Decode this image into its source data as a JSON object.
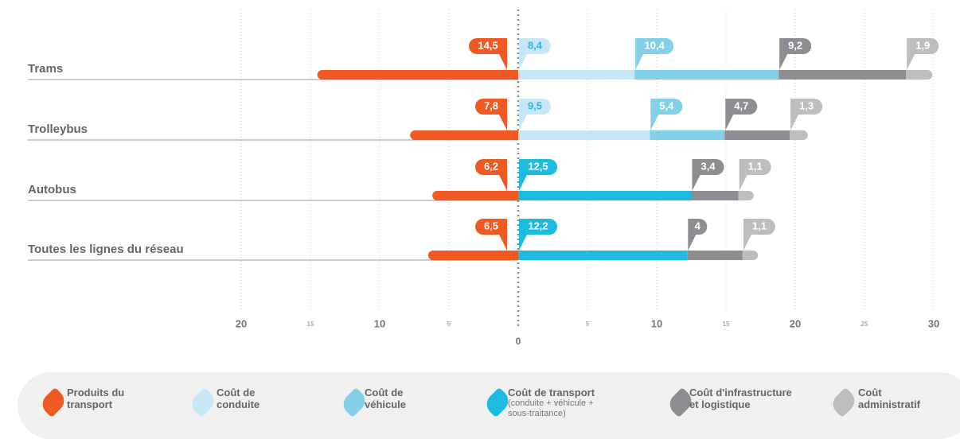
{
  "chart_data": {
    "type": "diverging-bar",
    "categories": [
      "Trams",
      "Trolleybus",
      "Autobus",
      "Toutes les lignes du réseau"
    ],
    "series": [
      {
        "name": "Produits du transport",
        "color": "#f05a22",
        "label_color": "#ffffff",
        "values": [
          -14.5,
          -7.8,
          -6.2,
          -6.5
        ],
        "value_labels": [
          "14,5",
          "7,8",
          "6,2",
          "6,5"
        ]
      },
      {
        "name": "Coût de conduite",
        "color": "#c6e8f6",
        "label_color": "#2fb3d9",
        "values": [
          8.4,
          9.5,
          null,
          null
        ],
        "value_labels": [
          "8,4",
          "9,5",
          null,
          null
        ]
      },
      {
        "name": "Coût de véhicule",
        "color": "#84d0e9",
        "label_color": "#ffffff",
        "values": [
          10.4,
          5.4,
          null,
          null
        ],
        "value_labels": [
          "10,4",
          "5,4",
          null,
          null
        ]
      },
      {
        "name": "Coût de transport",
        "note": "(conduite + véhicule + sous-traitance)",
        "color": "#1dbbe0",
        "label_color": "#ffffff",
        "values": [
          null,
          null,
          12.5,
          12.2
        ],
        "value_labels": [
          null,
          null,
          "12,5",
          "12,2"
        ]
      },
      {
        "name": "Coût d'infrastructure et logistique",
        "color": "#8e8e92",
        "label_color": "#ffffff",
        "values": [
          9.2,
          4.7,
          3.4,
          4
        ],
        "value_labels": [
          "9,2",
          "4,7",
          "3,4",
          null
        ]
      },
      {
        "name": "Coût administratif",
        "color": "#bdbdbf",
        "label_color": "#ffffff",
        "values": [
          1.9,
          1.3,
          1.1,
          1.1
        ],
        "value_labels": [
          "1,9",
          "1,3",
          "1,1",
          "1,1"
        ]
      }
    ],
    "xlim": [
      -35.4,
      30.4
    ],
    "xticks": [
      {
        "value": -20,
        "label": "20"
      },
      {
        "value": -15,
        "label": "15"
      },
      {
        "value": -10,
        "label": "10"
      },
      {
        "value": -5,
        "label": "5"
      },
      0,
      5,
      10,
      15,
      20,
      25,
      30
    ],
    "grid": true
  }
}
